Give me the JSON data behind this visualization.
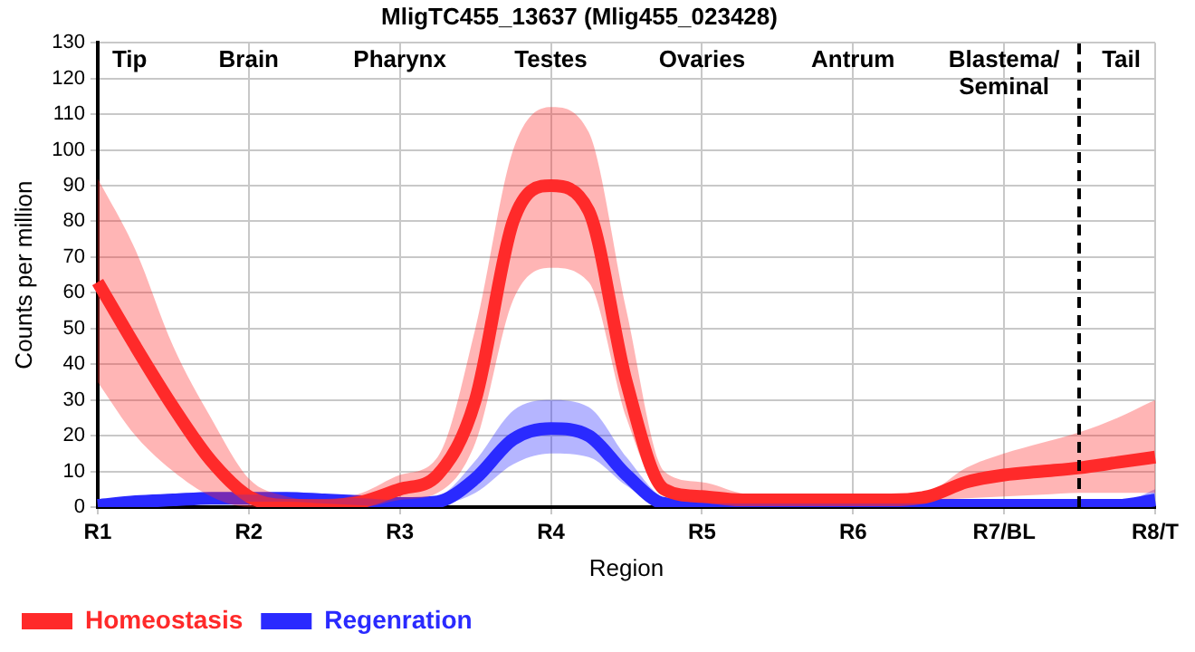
{
  "chart_data": {
    "type": "line",
    "title": "MligTC455_13637 (Mlig455_023428)",
    "xlabel": "Region",
    "ylabel": "Counts per million",
    "categories": [
      "R1",
      null,
      null,
      null,
      "R2",
      null,
      null,
      null,
      "R3",
      null,
      null,
      null,
      "R4",
      null,
      null,
      null,
      "R5",
      null,
      null,
      null,
      "R6",
      null,
      null,
      null,
      "R7/BL",
      null,
      null,
      null,
      "R8/T"
    ],
    "series": [
      {
        "name": "Homeostasis",
        "color": "#ff2a2a",
        "values": [
          63,
          45,
          28,
          13,
          3,
          0.5,
          0.5,
          1.5,
          5,
          9,
          30,
          80,
          90,
          83,
          35,
          5,
          3,
          2,
          2,
          2,
          2,
          2,
          3,
          7,
          9,
          10,
          11,
          12.5,
          14
        ],
        "lower": [
          35,
          20,
          10,
          3,
          0,
          0,
          0,
          0,
          2,
          4,
          18,
          58,
          67,
          63,
          25,
          3,
          2,
          1.5,
          1.5,
          1.5,
          1.5,
          1.5,
          2,
          2.5,
          3,
          3.5,
          4,
          4,
          4
        ],
        "upper": [
          92,
          72,
          45,
          25,
          8,
          3,
          2,
          4,
          9,
          14,
          50,
          100,
          112,
          105,
          55,
          10,
          7,
          4,
          2.5,
          2.5,
          2.5,
          2.5,
          4,
          11,
          15,
          18,
          21,
          25,
          30
        ]
      },
      {
        "name": "Regenration",
        "color": "#2a2aff",
        "values": [
          0.5,
          1.5,
          2,
          2.5,
          2.5,
          2.5,
          2,
          1.5,
          1,
          1.5,
          8,
          19,
          22,
          20,
          9,
          1,
          0.5,
          0.5,
          0.5,
          0.5,
          0.5,
          0.5,
          0.5,
          0.5,
          0.5,
          0.5,
          0.5,
          0.5,
          2
        ],
        "lower": [
          0,
          0.5,
          1,
          1.5,
          1.5,
          1.5,
          1,
          0.5,
          0,
          0.5,
          4,
          12,
          15,
          14,
          6,
          0,
          0,
          0,
          0,
          0,
          0,
          0,
          0,
          0,
          0,
          0,
          0,
          0,
          0
        ],
        "upper": [
          1.5,
          2.5,
          3,
          3.5,
          3.5,
          3.5,
          3,
          2.5,
          2,
          3,
          13,
          27,
          30,
          28,
          14,
          2.5,
          1,
          1,
          1,
          1,
          1,
          1,
          1,
          1,
          1,
          1,
          1,
          1,
          5
        ]
      }
    ],
    "ylim": [
      0,
      130
    ],
    "yticks": [
      0,
      10,
      20,
      30,
      40,
      50,
      60,
      70,
      80,
      90,
      100,
      110,
      120,
      130
    ],
    "annotations": [
      "Tip",
      "Brain",
      "Pharynx",
      "Testes",
      "Ovaries",
      "Antrum",
      "Blastema/\nSeminal",
      "Tail"
    ],
    "grid": true,
    "legend": "bottom left",
    "marker": "none",
    "line_style": "solid"
  }
}
